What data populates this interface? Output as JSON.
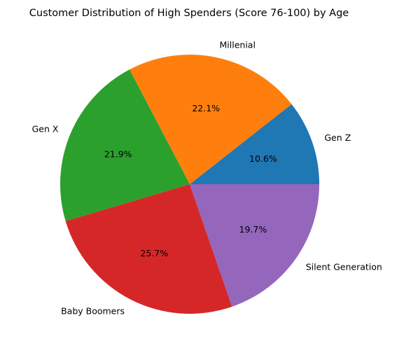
{
  "chart_data": {
    "type": "pie",
    "title": "Customer Distribution of High Spenders (Score 76-100) by Age",
    "categories": [
      "Gen Z",
      "Millenial",
      "Gen X",
      "Baby Boomers",
      "Silent Generation"
    ],
    "values": [
      10.6,
      22.1,
      21.9,
      25.7,
      19.7
    ],
    "value_labels": [
      "10.6%",
      "22.1%",
      "21.9%",
      "25.7%",
      "19.7%"
    ],
    "colors": [
      "#1f77b4",
      "#ff7f0e",
      "#2ca02c",
      "#d62728",
      "#9467bd"
    ],
    "start_angle_deg": 0,
    "direction": "counterclockwise"
  }
}
